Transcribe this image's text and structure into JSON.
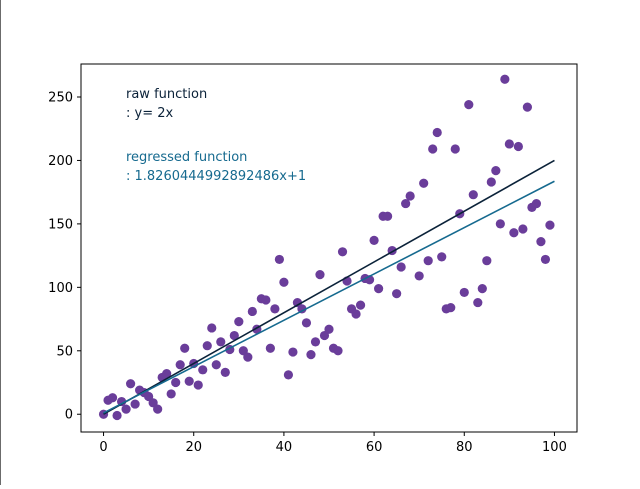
{
  "chart_data": {
    "type": "scatter",
    "title": "",
    "xlabel": "",
    "ylabel": "",
    "xlim": [
      -5,
      105
    ],
    "ylim": [
      -14,
      276
    ],
    "grid": false,
    "x_ticks": [
      0,
      20,
      40,
      60,
      80,
      100
    ],
    "y_ticks": [
      0,
      50,
      100,
      150,
      200,
      250
    ],
    "x_tick_labels": [
      "0",
      "20",
      "40",
      "60",
      "80",
      "100"
    ],
    "y_tick_labels": [
      "0",
      "50",
      "100",
      "150",
      "200",
      "250"
    ],
    "annotations": {
      "raw_title": "raw function",
      "raw_formula": ": y= 2x",
      "regressed_title": "regressed function",
      "regressed_formula": ": 1.8260444992892486x+1"
    },
    "colors": {
      "points": "#6a3d9a",
      "raw_line": "#0b2239",
      "regressed_line": "#166a8f",
      "raw_text": "#0b2239",
      "regressed_text": "#166a8f",
      "axes": "#000000"
    },
    "lines": [
      {
        "slope": 2,
        "intercept": 0,
        "x": [
          0,
          100
        ]
      },
      {
        "slope": 1.8260444992892486,
        "intercept": 1,
        "x": [
          0,
          100
        ]
      }
    ],
    "points": [
      [
        0,
        0
      ],
      [
        1,
        11
      ],
      [
        2,
        13
      ],
      [
        3,
        -1
      ],
      [
        4,
        10
      ],
      [
        5,
        4
      ],
      [
        6,
        24
      ],
      [
        7,
        8
      ],
      [
        8,
        19
      ],
      [
        9,
        17
      ],
      [
        10,
        14
      ],
      [
        11,
        9
      ],
      [
        12,
        4
      ],
      [
        13,
        29
      ],
      [
        14,
        32
      ],
      [
        15,
        16
      ],
      [
        16,
        25
      ],
      [
        17,
        39
      ],
      [
        18,
        52
      ],
      [
        19,
        26
      ],
      [
        20,
        40
      ],
      [
        21,
        23
      ],
      [
        22,
        35
      ],
      [
        23,
        54
      ],
      [
        24,
        68
      ],
      [
        25,
        39
      ],
      [
        26,
        57
      ],
      [
        27,
        33
      ],
      [
        28,
        51
      ],
      [
        29,
        62
      ],
      [
        30,
        73
      ],
      [
        31,
        50
      ],
      [
        32,
        45
      ],
      [
        33,
        81
      ],
      [
        34,
        67
      ],
      [
        35,
        91
      ],
      [
        36,
        90
      ],
      [
        37,
        52
      ],
      [
        38,
        83
      ],
      [
        39,
        122
      ],
      [
        40,
        104
      ],
      [
        41,
        31
      ],
      [
        42,
        49
      ],
      [
        43,
        88
      ],
      [
        44,
        83
      ],
      [
        45,
        72
      ],
      [
        46,
        47
      ],
      [
        47,
        57
      ],
      [
        48,
        110
      ],
      [
        49,
        62
      ],
      [
        50,
        67
      ],
      [
        51,
        52
      ],
      [
        52,
        50
      ],
      [
        53,
        128
      ],
      [
        54,
        105
      ],
      [
        55,
        83
      ],
      [
        56,
        79
      ],
      [
        57,
        86
      ],
      [
        58,
        107
      ],
      [
        59,
        106
      ],
      [
        60,
        137
      ],
      [
        61,
        99
      ],
      [
        62,
        156
      ],
      [
        63,
        156
      ],
      [
        64,
        129
      ],
      [
        65,
        95
      ],
      [
        66,
        116
      ],
      [
        67,
        166
      ],
      [
        68,
        172
      ],
      [
        70,
        109
      ],
      [
        71,
        182
      ],
      [
        72,
        121
      ],
      [
        73,
        209
      ],
      [
        74,
        222
      ],
      [
        75,
        124
      ],
      [
        76,
        83
      ],
      [
        77,
        84
      ],
      [
        78,
        209
      ],
      [
        79,
        158
      ],
      [
        80,
        96
      ],
      [
        81,
        244
      ],
      [
        82,
        173
      ],
      [
        83,
        88
      ],
      [
        84,
        99
      ],
      [
        85,
        121
      ],
      [
        86,
        183
      ],
      [
        87,
        192
      ],
      [
        88,
        150
      ],
      [
        89,
        264
      ],
      [
        90,
        213
      ],
      [
        91,
        143
      ],
      [
        92,
        211
      ],
      [
        93,
        146
      ],
      [
        94,
        242
      ],
      [
        95,
        163
      ],
      [
        96,
        166
      ],
      [
        97,
        136
      ],
      [
        98,
        122
      ],
      [
        99,
        149
      ]
    ]
  }
}
